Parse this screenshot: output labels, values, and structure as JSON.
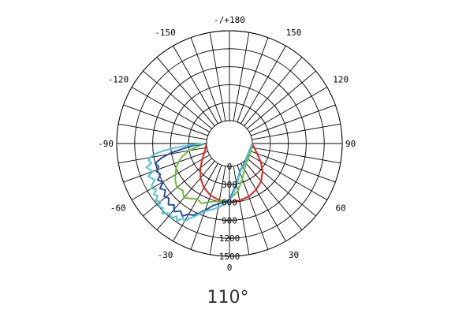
{
  "chart_data": {
    "type": "polar-line",
    "title": "",
    "caption": "110°",
    "angle_labels": [
      {
        "deg": 180,
        "text": "-/+180"
      },
      {
        "deg": 150,
        "text": "150"
      },
      {
        "deg": 120,
        "text": "120"
      },
      {
        "deg": 90,
        "text": "90"
      },
      {
        "deg": 60,
        "text": "60"
      },
      {
        "deg": 30,
        "text": "30"
      },
      {
        "deg": 0,
        "text": "0"
      },
      {
        "deg": -30,
        "text": "-30"
      },
      {
        "deg": -60,
        "text": "-60"
      },
      {
        "deg": -90,
        "text": "-90"
      },
      {
        "deg": -120,
        "text": "-120"
      },
      {
        "deg": -150,
        "text": "-150"
      }
    ],
    "radial_ticks": [
      0,
      300,
      600,
      900,
      1200,
      1500
    ],
    "radial_max": 1500,
    "grid": true,
    "series": [
      {
        "color": "#e8201c",
        "points": [
          [
            -90,
            0
          ],
          [
            -75,
            40
          ],
          [
            -60,
            140
          ],
          [
            -50,
            250
          ],
          [
            -40,
            370
          ],
          [
            -30,
            470
          ],
          [
            -20,
            540
          ],
          [
            -10,
            580
          ],
          [
            0,
            590
          ],
          [
            10,
            585
          ],
          [
            20,
            560
          ],
          [
            30,
            510
          ],
          [
            40,
            440
          ],
          [
            50,
            340
          ],
          [
            60,
            220
          ],
          [
            70,
            110
          ],
          [
            80,
            40
          ],
          [
            90,
            0
          ]
        ]
      },
      {
        "color": "#6cbf3a",
        "points": [
          [
            -90,
            20
          ],
          [
            -85,
            150
          ],
          [
            -80,
            300
          ],
          [
            -75,
            430
          ],
          [
            -70,
            520
          ],
          [
            -65,
            600
          ],
          [
            -60,
            660
          ],
          [
            -55,
            720
          ],
          [
            -50,
            760
          ],
          [
            -45,
            720
          ],
          [
            -40,
            800
          ],
          [
            -35,
            740
          ],
          [
            -30,
            690
          ],
          [
            -25,
            720
          ],
          [
            -20,
            660
          ],
          [
            -15,
            620
          ],
          [
            -10,
            600
          ],
          [
            0,
            560
          ],
          [
            10,
            420
          ],
          [
            20,
            250
          ],
          [
            30,
            120
          ],
          [
            40,
            50
          ],
          [
            60,
            10
          ],
          [
            90,
            0
          ]
        ]
      },
      {
        "color": "#1f4fa8",
        "points": [
          [
            -90,
            20
          ],
          [
            -87,
            200
          ],
          [
            -84,
            380
          ],
          [
            -81,
            600
          ],
          [
            -78,
            780
          ],
          [
            -75,
            900
          ],
          [
            -72,
            860
          ],
          [
            -69,
            920
          ],
          [
            -66,
            880
          ],
          [
            -63,
            960
          ],
          [
            -60,
            900
          ],
          [
            -57,
            1000
          ],
          [
            -54,
            940
          ],
          [
            -51,
            1020
          ],
          [
            -48,
            980
          ],
          [
            -45,
            1060
          ],
          [
            -42,
            1000
          ],
          [
            -39,
            1080
          ],
          [
            -36,
            1010
          ],
          [
            -33,
            1060
          ],
          [
            -30,
            980
          ],
          [
            -27,
            960
          ],
          [
            -24,
            900
          ],
          [
            -21,
            820
          ],
          [
            -18,
            760
          ],
          [
            -15,
            690
          ],
          [
            -10,
            640
          ],
          [
            -5,
            600
          ],
          [
            0,
            560
          ],
          [
            10,
            300
          ],
          [
            20,
            120
          ],
          [
            40,
            20
          ],
          [
            90,
            0
          ]
        ]
      },
      {
        "color": "#4fc3d6",
        "points": [
          [
            -90,
            30
          ],
          [
            -88,
            250
          ],
          [
            -86,
            480
          ],
          [
            -84,
            700
          ],
          [
            -82,
            880
          ],
          [
            -80,
            960
          ],
          [
            -78,
            1000
          ],
          [
            -76,
            960
          ],
          [
            -74,
            1060
          ],
          [
            -72,
            1020
          ],
          [
            -70,
            980
          ],
          [
            -68,
            1080
          ],
          [
            -66,
            1040
          ],
          [
            -64,
            1000
          ],
          [
            -62,
            1080
          ],
          [
            -60,
            1120
          ],
          [
            -58,
            1060
          ],
          [
            -56,
            1140
          ],
          [
            -54,
            1100
          ],
          [
            -52,
            1180
          ],
          [
            -50,
            1120
          ],
          [
            -48,
            1200
          ],
          [
            -46,
            1160
          ],
          [
            -44,
            1240
          ],
          [
            -42,
            1180
          ],
          [
            -40,
            1150
          ],
          [
            -38,
            1200
          ],
          [
            -36,
            1120
          ],
          [
            -34,
            1180
          ],
          [
            -32,
            1080
          ],
          [
            -30,
            1120
          ],
          [
            -28,
            1030
          ],
          [
            -26,
            980
          ],
          [
            -24,
            920
          ],
          [
            -22,
            860
          ],
          [
            -20,
            820
          ],
          [
            -15,
            760
          ],
          [
            -10,
            700
          ],
          [
            -5,
            640
          ],
          [
            0,
            590
          ],
          [
            10,
            320
          ],
          [
            20,
            130
          ],
          [
            40,
            30
          ],
          [
            90,
            0
          ]
        ]
      }
    ]
  }
}
